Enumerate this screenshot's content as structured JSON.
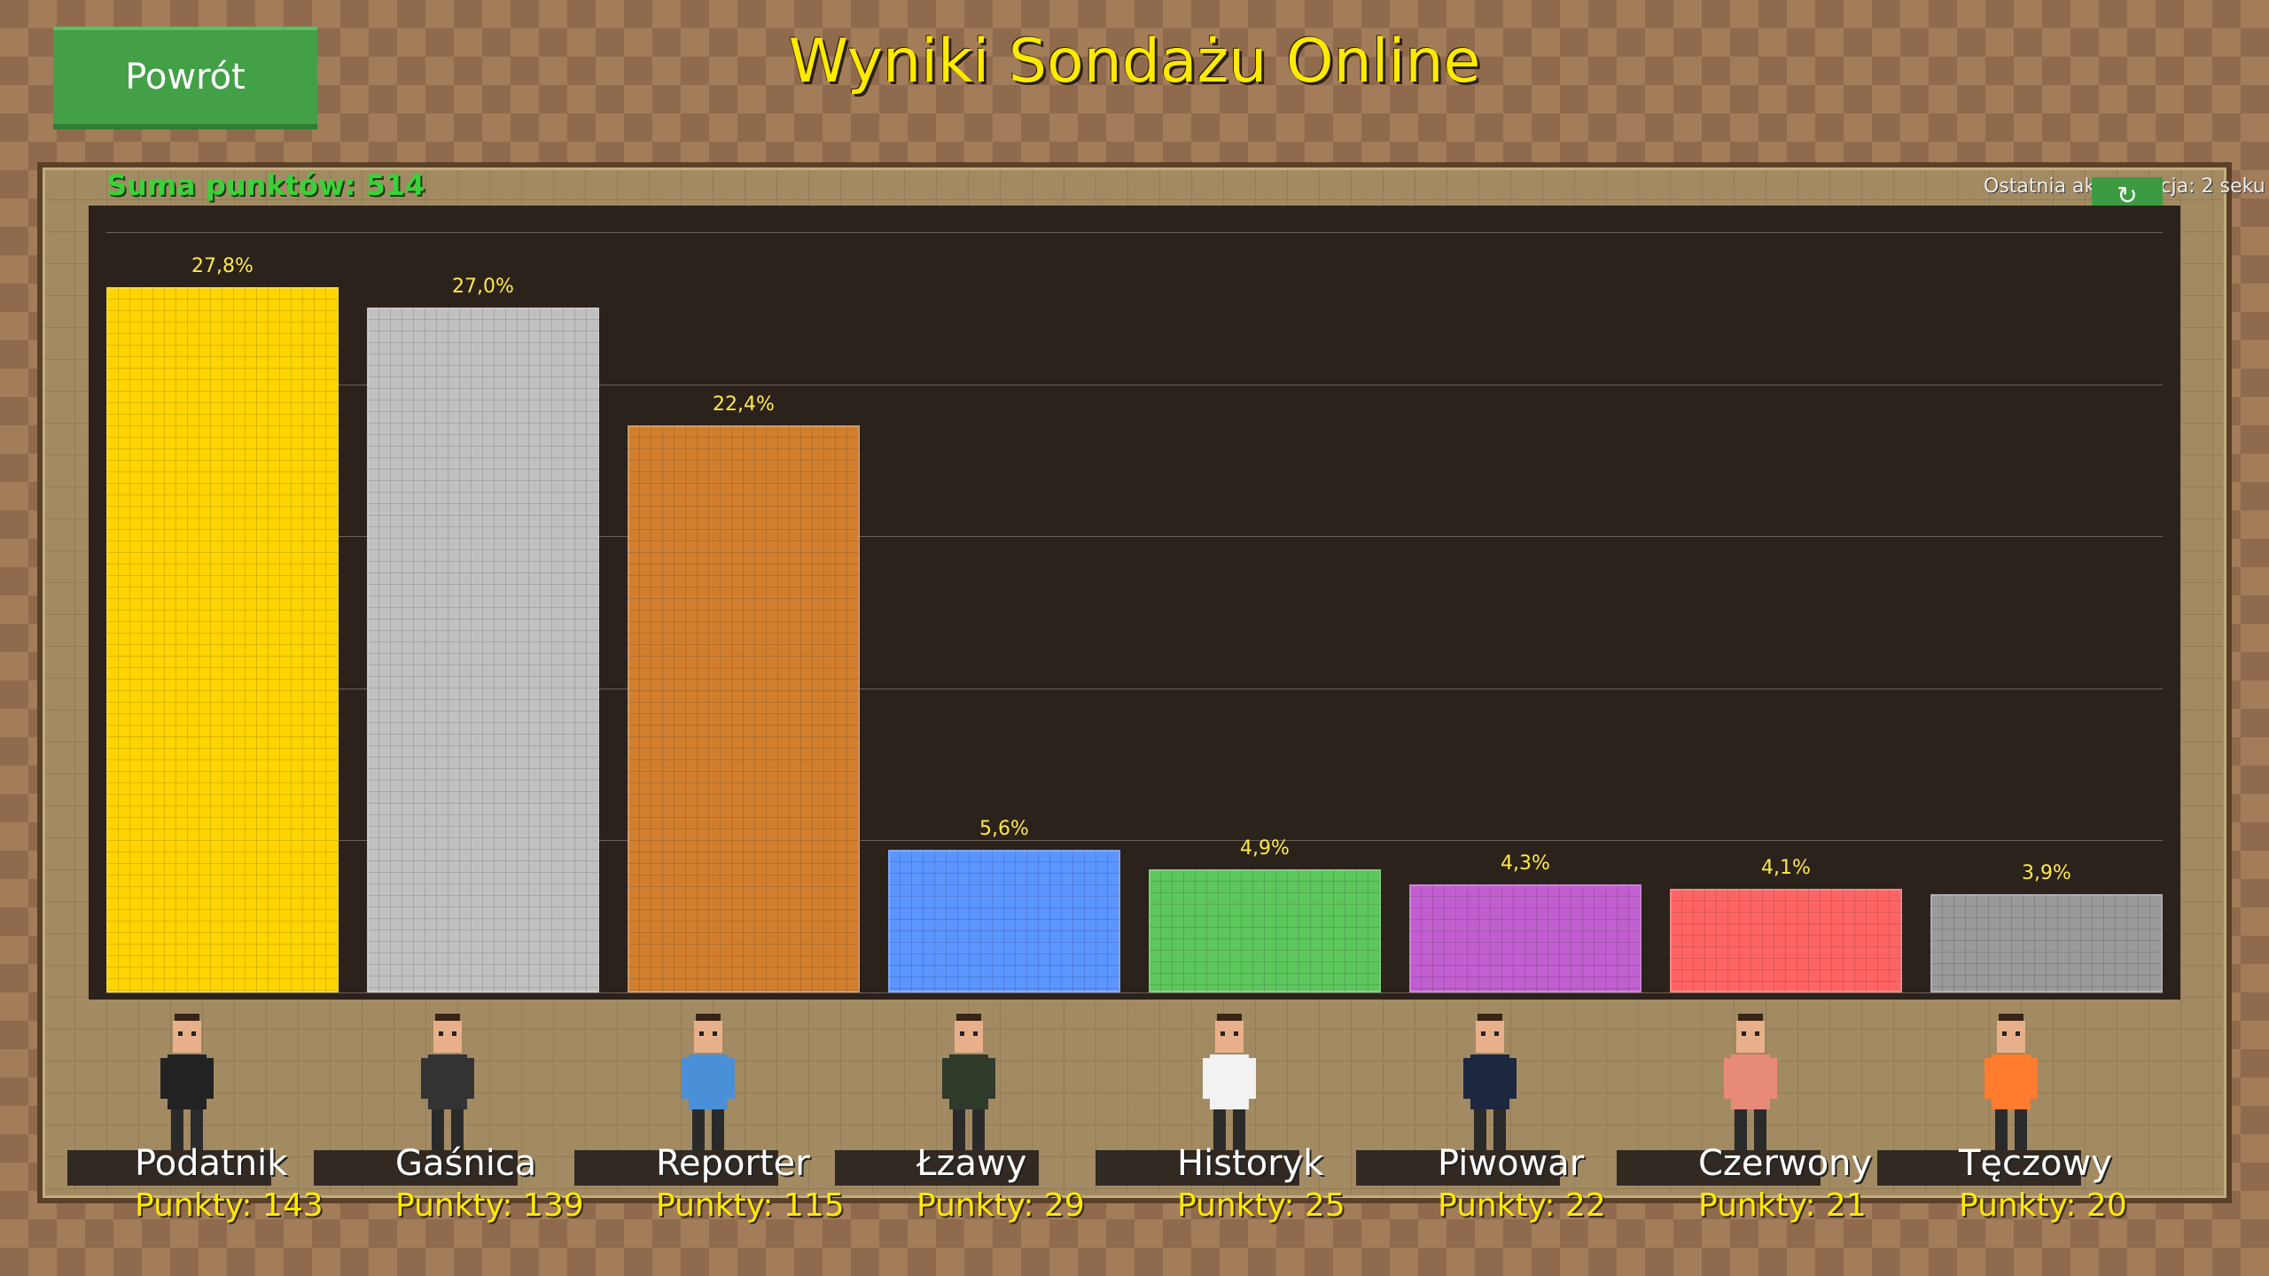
{
  "header": {
    "back_label": "Powrót",
    "title": "Wyniki Sondażu Online"
  },
  "summary": {
    "total_label": "Suma punktów: 514",
    "last_update_label": "Ostatnia aktualizacja: 2 seku",
    "refresh_icon": "refresh-icon"
  },
  "chart_data": {
    "type": "bar",
    "categories": [
      "Podatnik",
      "Gaśnica",
      "Reporter",
      "Łzawy",
      "Historyk",
      "Piwowar",
      "Czerwony",
      "Tęczowy"
    ],
    "values": [
      143,
      139,
      115,
      29,
      25,
      22,
      21,
      20
    ],
    "percent_labels": [
      "27,8%",
      "27,0%",
      "22,4%",
      "5,6%",
      "4,9%",
      "4,3%",
      "4,1%",
      "3,9%"
    ],
    "points_labels": [
      "Punkty: 143",
      "Punkty: 139",
      "Punkty: 115",
      "Punkty: 29",
      "Punkty: 25",
      "Punkty: 22",
      "Punkty: 21",
      "Punkty: 20"
    ],
    "colors": [
      "#ffd400",
      "#c0c0c0",
      "#d17f2e",
      "#5b95ff",
      "#5dc65d",
      "#c25fd0",
      "#ff6464",
      "#9a9a9a"
    ],
    "ylim_percent": [
      0,
      30
    ],
    "grid": true
  }
}
